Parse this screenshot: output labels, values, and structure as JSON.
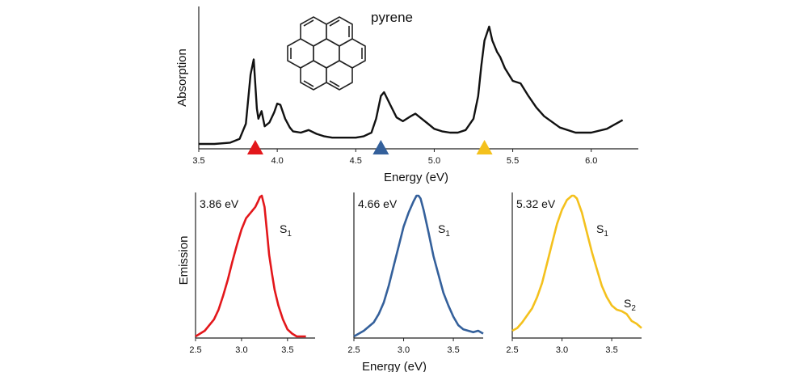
{
  "chart_data": [
    {
      "type": "line",
      "xlabel": "Energy (eV)",
      "ylabel": "Absorption",
      "xlim": [
        3.5,
        6.3
      ],
      "xticks": [
        "3.5",
        "4.0",
        "4.5",
        "5.0",
        "5.5",
        "6.0"
      ],
      "yticks": false,
      "annotation": "pyrene",
      "color": "#111111",
      "x": [
        3.5,
        3.6,
        3.7,
        3.76,
        3.8,
        3.83,
        3.85,
        3.87,
        3.88,
        3.9,
        3.92,
        3.95,
        3.98,
        4.0,
        4.02,
        4.05,
        4.08,
        4.1,
        4.15,
        4.2,
        4.25,
        4.3,
        4.35,
        4.4,
        4.45,
        4.5,
        4.55,
        4.6,
        4.63,
        4.66,
        4.68,
        4.72,
        4.76,
        4.8,
        4.85,
        4.88,
        4.92,
        4.96,
        5.0,
        5.05,
        5.1,
        5.15,
        5.2,
        5.25,
        5.28,
        5.3,
        5.32,
        5.35,
        5.37,
        5.4,
        5.42,
        5.45,
        5.5,
        5.55,
        5.6,
        5.65,
        5.7,
        5.8,
        5.9,
        6.0,
        6.1,
        6.2
      ],
      "y": [
        0.0,
        0.0,
        0.01,
        0.04,
        0.16,
        0.55,
        0.67,
        0.28,
        0.2,
        0.26,
        0.14,
        0.17,
        0.25,
        0.32,
        0.31,
        0.2,
        0.13,
        0.1,
        0.09,
        0.11,
        0.08,
        0.06,
        0.05,
        0.05,
        0.05,
        0.05,
        0.06,
        0.09,
        0.2,
        0.38,
        0.41,
        0.31,
        0.21,
        0.18,
        0.22,
        0.24,
        0.2,
        0.16,
        0.12,
        0.1,
        0.09,
        0.09,
        0.11,
        0.2,
        0.38,
        0.62,
        0.82,
        0.93,
        0.82,
        0.73,
        0.69,
        0.6,
        0.5,
        0.48,
        0.38,
        0.29,
        0.22,
        0.13,
        0.09,
        0.09,
        0.12,
        0.19
      ],
      "markers": [
        {
          "x": 3.86,
          "color": "#e3171b"
        },
        {
          "x": 4.66,
          "color": "#34609b"
        },
        {
          "x": 5.32,
          "color": "#f4c11d"
        }
      ]
    },
    {
      "type": "line",
      "xlabel": "",
      "ylabel": "Emission",
      "xlim": [
        2.5,
        3.8
      ],
      "xticks": [
        "2.5",
        "3.0",
        "3.5"
      ],
      "yticks": false,
      "label": "3.86 eV",
      "peak_label": "S1",
      "color": "#e3171b",
      "x": [
        2.5,
        2.6,
        2.7,
        2.75,
        2.8,
        2.85,
        2.9,
        2.95,
        3.0,
        3.05,
        3.1,
        3.15,
        3.18,
        3.2,
        3.22,
        3.25,
        3.28,
        3.3,
        3.33,
        3.36,
        3.4,
        3.45,
        3.5,
        3.55,
        3.6,
        3.65,
        3.7
      ],
      "y": [
        0.0,
        0.04,
        0.12,
        0.19,
        0.29,
        0.4,
        0.53,
        0.65,
        0.76,
        0.84,
        0.88,
        0.92,
        0.96,
        0.99,
        1.0,
        0.92,
        0.72,
        0.58,
        0.45,
        0.33,
        0.22,
        0.12,
        0.05,
        0.02,
        0.0,
        0.0,
        0.0
      ]
    },
    {
      "type": "line",
      "xlabel": "Energy (eV)",
      "ylabel": "",
      "xlim": [
        2.5,
        3.8
      ],
      "xticks": [
        "2.5",
        "3.0",
        "3.5"
      ],
      "yticks": false,
      "label": "4.66 eV",
      "peak_label": "S1",
      "color": "#34609b",
      "x": [
        2.5,
        2.6,
        2.7,
        2.75,
        2.8,
        2.85,
        2.9,
        2.95,
        3.0,
        3.05,
        3.1,
        3.13,
        3.15,
        3.17,
        3.2,
        3.25,
        3.3,
        3.35,
        3.4,
        3.45,
        3.5,
        3.55,
        3.6,
        3.65,
        3.7,
        3.75,
        3.8
      ],
      "y": [
        0.0,
        0.04,
        0.1,
        0.16,
        0.24,
        0.36,
        0.5,
        0.64,
        0.78,
        0.88,
        0.96,
        1.0,
        1.0,
        0.98,
        0.9,
        0.74,
        0.57,
        0.44,
        0.31,
        0.22,
        0.14,
        0.08,
        0.05,
        0.04,
        0.03,
        0.04,
        0.02
      ]
    },
    {
      "type": "line",
      "xlabel": "",
      "ylabel": "",
      "xlim": [
        2.5,
        3.8
      ],
      "xticks": [
        "2.5",
        "3.0",
        "3.5"
      ],
      "yticks": false,
      "label": "5.32 eV",
      "peak_label": "S1",
      "shoulder_label": "S2",
      "color": "#f4c11d",
      "x": [
        2.5,
        2.55,
        2.6,
        2.7,
        2.75,
        2.8,
        2.85,
        2.9,
        2.95,
        3.0,
        3.05,
        3.1,
        3.12,
        3.15,
        3.2,
        3.25,
        3.3,
        3.35,
        3.4,
        3.45,
        3.5,
        3.55,
        3.6,
        3.65,
        3.7,
        3.75,
        3.8
      ],
      "y": [
        0.04,
        0.06,
        0.1,
        0.2,
        0.28,
        0.38,
        0.52,
        0.66,
        0.8,
        0.9,
        0.97,
        1.0,
        1.0,
        0.98,
        0.88,
        0.74,
        0.6,
        0.48,
        0.36,
        0.28,
        0.22,
        0.19,
        0.18,
        0.16,
        0.11,
        0.09,
        0.06
      ]
    }
  ]
}
